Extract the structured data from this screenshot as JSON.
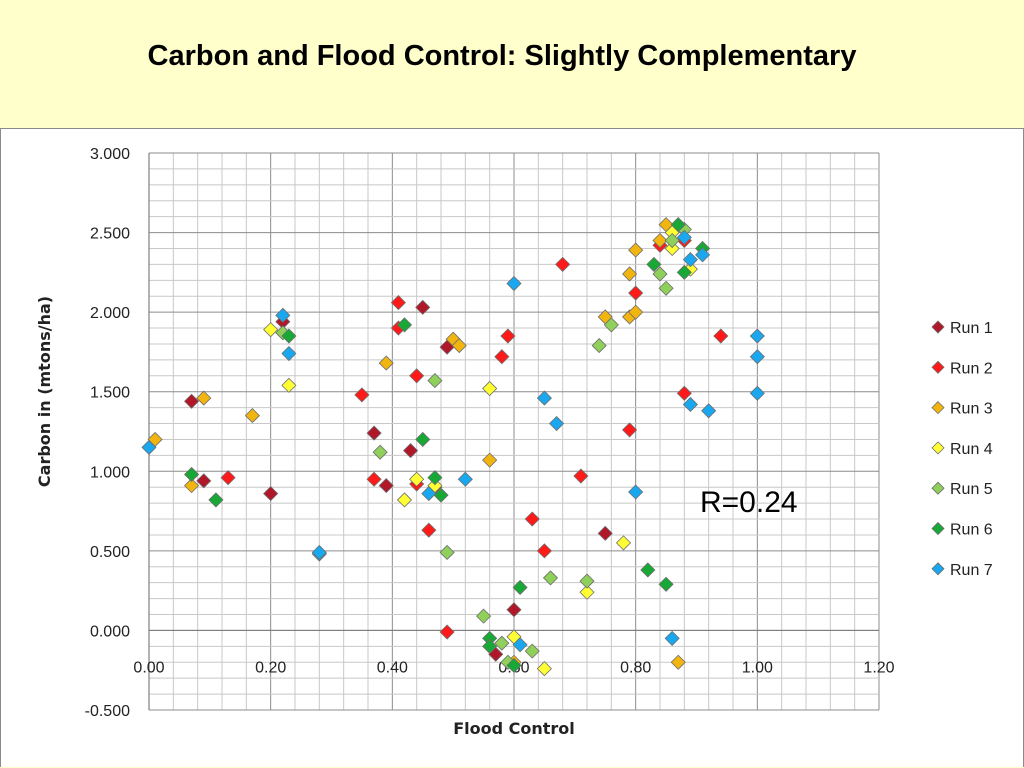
{
  "slide": {
    "title": "Carbon and Flood Control: Slightly Complementary"
  },
  "colors": {
    "background": "#ffffcc",
    "Run 1": "#b0182a",
    "Run 2": "#ff1a1a",
    "Run 3": "#f2b50f",
    "Run 4": "#ffff33",
    "Run 5": "#8fd05a",
    "Run 6": "#18a836",
    "Run 7": "#19a8f0"
  },
  "chart_data": {
    "type": "scatter",
    "title": "",
    "xlabel": "Flood Control",
    "ylabel": "Carbon in (mtons/ha)",
    "xlim": [
      0,
      1.2
    ],
    "ylim": [
      -0.5,
      3.0
    ],
    "x_ticks": [
      "0.00",
      "0.20",
      "0.40",
      "0.60",
      "0.80",
      "1.00",
      "1.20"
    ],
    "y_ticks": [
      "-0.500",
      "0.000",
      "0.500",
      "1.000",
      "1.500",
      "2.000",
      "2.500",
      "3.000"
    ],
    "grid": true,
    "legend_position": "right",
    "annotation": "R=0.24",
    "series": [
      {
        "name": "Run 1",
        "points": [
          [
            0.07,
            1.44
          ],
          [
            0.09,
            0.94
          ],
          [
            0.2,
            0.86
          ],
          [
            0.22,
            1.94
          ],
          [
            0.37,
            1.24
          ],
          [
            0.39,
            0.91
          ],
          [
            0.43,
            1.13
          ],
          [
            0.45,
            2.03
          ],
          [
            0.49,
            1.78
          ],
          [
            0.57,
            -0.15
          ],
          [
            0.6,
            0.13
          ],
          [
            0.75,
            0.61
          ]
        ]
      },
      {
        "name": "Run 2",
        "points": [
          [
            0.13,
            0.96
          ],
          [
            0.35,
            1.48
          ],
          [
            0.37,
            0.95
          ],
          [
            0.41,
            2.06
          ],
          [
            0.41,
            1.9
          ],
          [
            0.44,
            1.6
          ],
          [
            0.44,
            0.92
          ],
          [
            0.46,
            0.63
          ],
          [
            0.47,
            0.9
          ],
          [
            0.49,
            -0.01
          ],
          [
            0.58,
            1.72
          ],
          [
            0.59,
            1.85
          ],
          [
            0.63,
            0.7
          ],
          [
            0.65,
            0.5
          ],
          [
            0.68,
            2.3
          ],
          [
            0.71,
            0.97
          ],
          [
            0.79,
            1.26
          ],
          [
            0.8,
            2.12
          ],
          [
            0.84,
            2.42
          ],
          [
            0.88,
            2.45
          ],
          [
            0.88,
            1.49
          ],
          [
            0.94,
            1.85
          ]
        ]
      },
      {
        "name": "Run 3",
        "points": [
          [
            0.01,
            1.2
          ],
          [
            0.07,
            0.91
          ],
          [
            0.09,
            1.46
          ],
          [
            0.17,
            1.35
          ],
          [
            0.39,
            1.68
          ],
          [
            0.5,
            1.83
          ],
          [
            0.51,
            1.79
          ],
          [
            0.56,
            1.07
          ],
          [
            0.6,
            -0.2
          ],
          [
            0.75,
            1.97
          ],
          [
            0.79,
            2.24
          ],
          [
            0.79,
            1.97
          ],
          [
            0.8,
            2.0
          ],
          [
            0.8,
            2.39
          ],
          [
            0.84,
            2.45
          ],
          [
            0.85,
            2.55
          ],
          [
            0.87,
            -0.2
          ]
        ]
      },
      {
        "name": "Run 4",
        "points": [
          [
            0.2,
            1.89
          ],
          [
            0.23,
            1.54
          ],
          [
            0.42,
            0.82
          ],
          [
            0.44,
            0.95
          ],
          [
            0.47,
            0.91
          ],
          [
            0.56,
            1.52
          ],
          [
            0.6,
            -0.04
          ],
          [
            0.65,
            -0.24
          ],
          [
            0.72,
            0.24
          ],
          [
            0.78,
            0.55
          ],
          [
            0.86,
            2.4
          ],
          [
            0.86,
            2.5
          ],
          [
            0.89,
            2.27
          ]
        ]
      },
      {
        "name": "Run 5",
        "points": [
          [
            0.22,
            1.87
          ],
          [
            0.38,
            1.12
          ],
          [
            0.47,
            1.57
          ],
          [
            0.49,
            0.49
          ],
          [
            0.55,
            0.09
          ],
          [
            0.58,
            -0.08
          ],
          [
            0.59,
            -0.2
          ],
          [
            0.63,
            -0.13
          ],
          [
            0.66,
            0.33
          ],
          [
            0.72,
            0.31
          ],
          [
            0.74,
            1.79
          ],
          [
            0.76,
            1.92
          ],
          [
            0.84,
            2.24
          ],
          [
            0.85,
            2.15
          ],
          [
            0.86,
            2.45
          ],
          [
            0.88,
            2.52
          ]
        ]
      },
      {
        "name": "Run 6",
        "points": [
          [
            0.07,
            0.98
          ],
          [
            0.11,
            0.82
          ],
          [
            0.23,
            1.85
          ],
          [
            0.42,
            1.92
          ],
          [
            0.45,
            1.2
          ],
          [
            0.47,
            0.96
          ],
          [
            0.48,
            0.85
          ],
          [
            0.56,
            -0.05
          ],
          [
            0.56,
            -0.1
          ],
          [
            0.6,
            -0.22
          ],
          [
            0.61,
            0.27
          ],
          [
            0.82,
            0.38
          ],
          [
            0.85,
            0.29
          ],
          [
            0.83,
            2.3
          ],
          [
            0.87,
            2.55
          ],
          [
            0.88,
            2.25
          ],
          [
            0.91,
            2.4
          ]
        ]
      },
      {
        "name": "Run 7",
        "points": [
          [
            0.0,
            1.15
          ],
          [
            0.22,
            1.98
          ],
          [
            0.23,
            1.74
          ],
          [
            0.28,
            0.48
          ],
          [
            0.28,
            0.49
          ],
          [
            0.46,
            0.86
          ],
          [
            0.52,
            0.95
          ],
          [
            0.6,
            2.18
          ],
          [
            0.61,
            -0.09
          ],
          [
            0.65,
            1.46
          ],
          [
            0.67,
            1.3
          ],
          [
            0.8,
            0.87
          ],
          [
            0.86,
            -0.05
          ],
          [
            0.88,
            2.47
          ],
          [
            0.89,
            1.42
          ],
          [
            0.89,
            2.33
          ],
          [
            0.91,
            2.36
          ],
          [
            0.92,
            1.38
          ],
          [
            1.0,
            1.85
          ],
          [
            1.0,
            1.72
          ],
          [
            1.0,
            1.49
          ]
        ]
      }
    ]
  }
}
